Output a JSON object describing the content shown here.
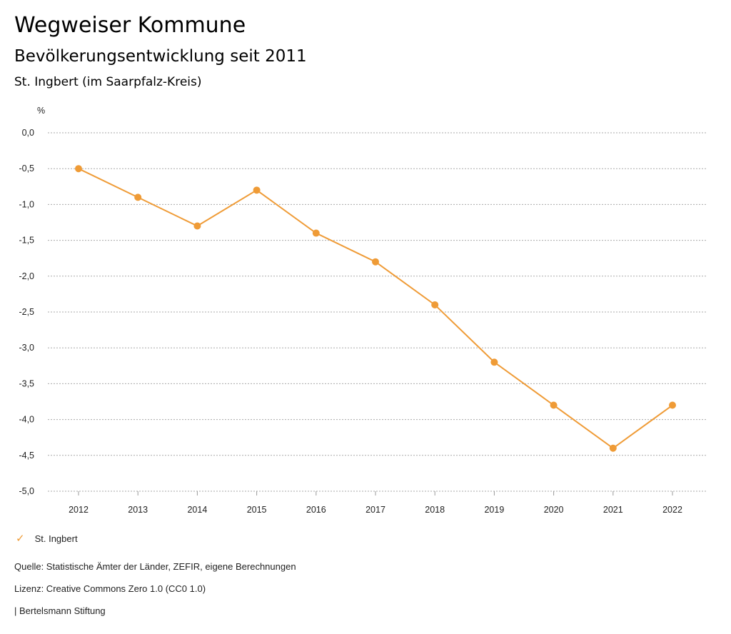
{
  "header": {
    "title": "Wegweiser Kommune",
    "subtitle": "Bevölkerungsentwicklung seit 2011",
    "region": "St. Ingbert (im Saarpfalz-Kreis)"
  },
  "chart_data": {
    "type": "line",
    "ylabel": "%",
    "ylim": [
      -5.0,
      0.0
    ],
    "yticks": [
      "0,0",
      "-0,5",
      "-1,0",
      "-1,5",
      "-2,0",
      "-2,5",
      "-3,0",
      "-3,5",
      "-4,0",
      "-4,5",
      "-5,0"
    ],
    "ytick_values": [
      0,
      -0.5,
      -1,
      -1.5,
      -2,
      -2.5,
      -3,
      -3.5,
      -4,
      -4.5,
      -5
    ],
    "grid": true,
    "categories": [
      "2012",
      "2013",
      "2014",
      "2015",
      "2016",
      "2017",
      "2018",
      "2019",
      "2020",
      "2021",
      "2022"
    ],
    "series": [
      {
        "name": "St. Ingbert",
        "color": "#ef9b36",
        "values": [
          -0.5,
          -0.9,
          -1.3,
          -0.8,
          -1.4,
          -1.8,
          -2.4,
          -3.2,
          -3.8,
          -4.4,
          -3.8
        ]
      }
    ],
    "legend_placement": "bottom-left"
  },
  "legend": {
    "label": "St. Ingbert",
    "icon": "check-icon"
  },
  "footer": {
    "source": "Quelle: Statistische Ämter der Länder, ZEFIR, eigene Berechnungen",
    "license": "Lizenz: Creative Commons Zero 1.0 (CC0 1.0)",
    "publisher": "| Bertelsmann Stiftung"
  }
}
